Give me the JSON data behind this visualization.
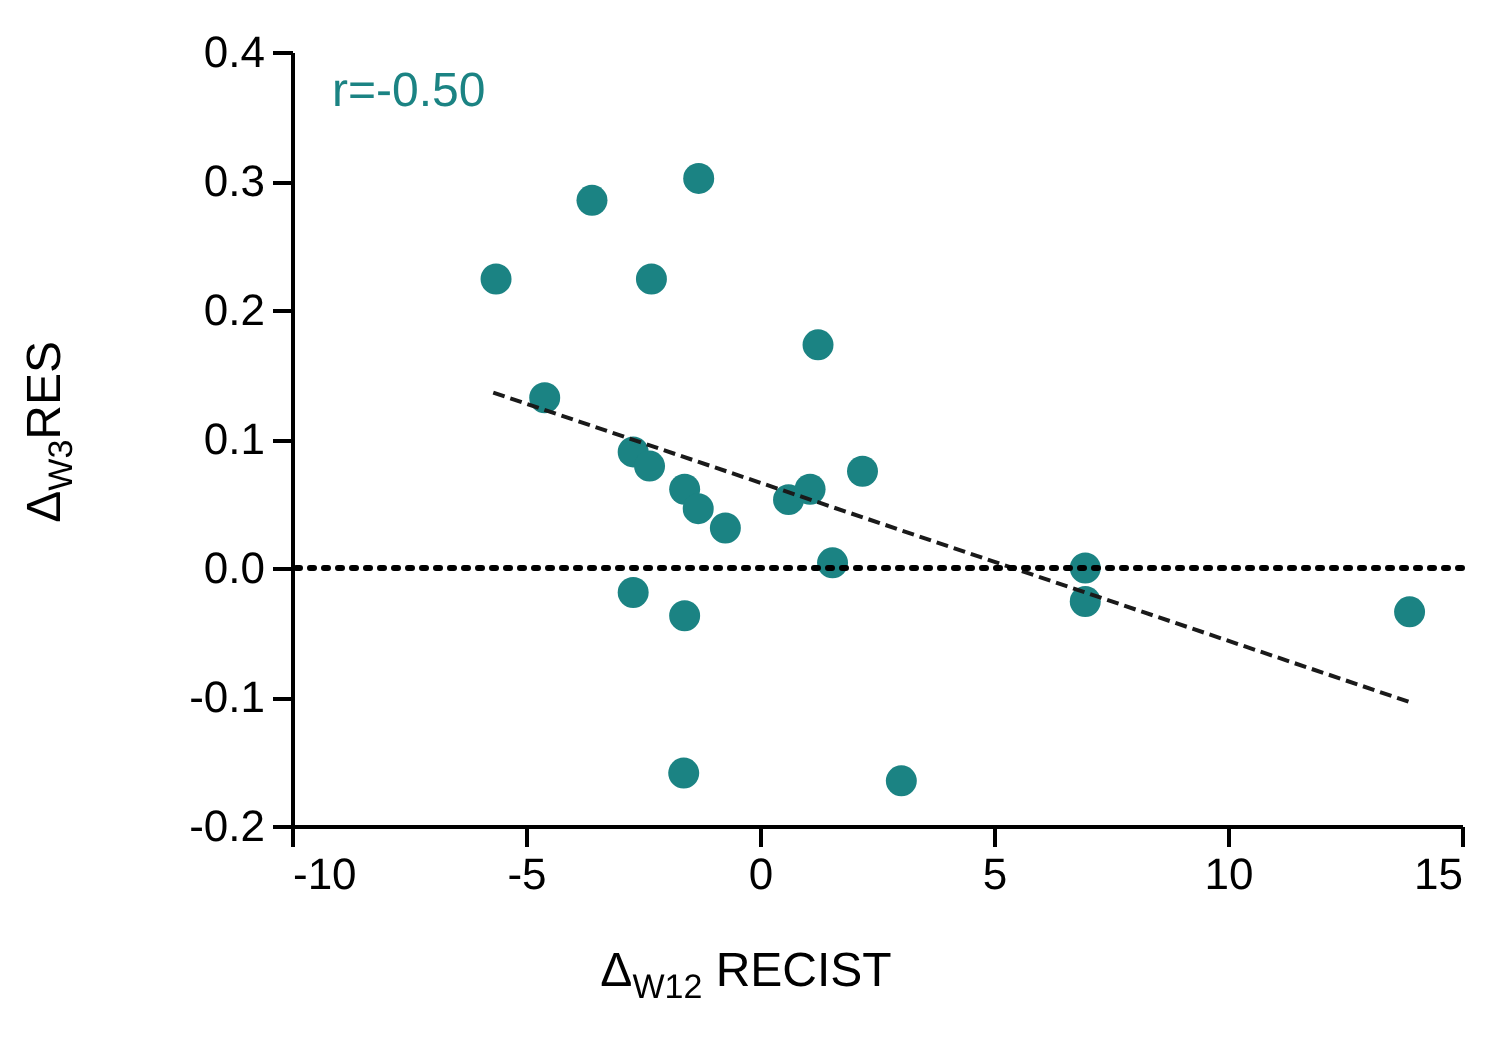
{
  "chart_data": {
    "type": "scatter",
    "xlabel": "Δ$_{W12}$ RECIST",
    "ylabel": "Δ$_{W3}$RES",
    "annotations": [
      "r=-0.50"
    ],
    "xlim": [
      -10,
      15
    ],
    "xticks": [
      -10,
      -5,
      0,
      5,
      10,
      15
    ],
    "ylim": [
      -0.2,
      0.4
    ],
    "yticks": [
      -0.2,
      -0.1,
      {
        "value": 0,
        "label": "0.0"
      },
      0.1,
      0.2,
      0.3,
      0.4
    ],
    "series": [
      {
        "color": "#1b8383",
        "marker": "circle",
        "x": [
          -5.64,
          -3.59,
          -1.31,
          -2.32,
          -4.6,
          1.24,
          -2.71,
          -2.36,
          -1.61,
          -1.32,
          -0.74,
          0.61,
          1.07,
          2.19,
          1.55,
          -2.71,
          -1.61,
          6.95,
          6.95,
          13.88,
          3.02,
          -1.63
        ],
        "values": [
          0.224,
          0.285,
          0.302,
          0.224,
          0.132,
          0.173,
          0.09,
          0.079,
          0.061,
          0.046,
          0.031,
          0.053,
          0.061,
          0.075,
          0.004,
          -0.019,
          -0.037,
          0.0,
          -0.026,
          -0.034,
          -0.165,
          -0.159
        ]
      },
      {
        "type": "line",
        "color": "#1a1a1a",
        "line_style": "dashed",
        "x": [
          -5.7,
          13.89
        ],
        "values": [
          0.136,
          -0.104
        ]
      }
    ],
    "ref_lines": [
      {
        "axis": "y",
        "value": 0,
        "color": "#000000",
        "line_style": "dotted"
      }
    ]
  }
}
